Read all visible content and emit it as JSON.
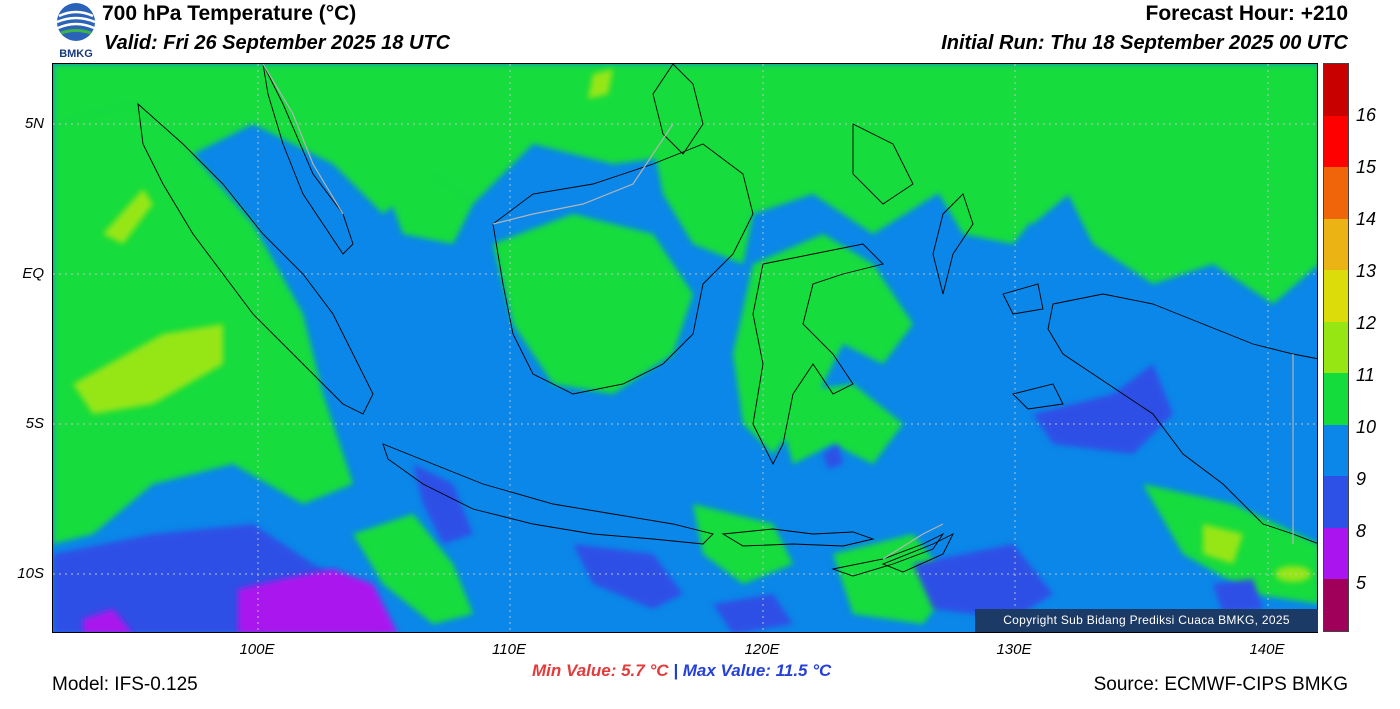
{
  "header": {
    "title": "700 hPa Temperature (°C)",
    "valid": "Valid: Fri 26 September 2025 18 UTC",
    "forecast_hour": "Forecast Hour: +210",
    "initial_run": "Initial Run: Thu 18 September 2025 00 UTC",
    "logo_text": "BMKG"
  },
  "map": {
    "lat_labels": [
      "5N",
      "EQ",
      "5S",
      "10S"
    ],
    "lon_labels": [
      "100E",
      "110E",
      "120E",
      "130E",
      "140E"
    ],
    "copyright": "Copyright Sub Bidang Prediksi Cuaca BMKG, 2025",
    "dominant_color": "#0a87e8",
    "grid": true
  },
  "legend": {
    "labels": [
      "16",
      "15",
      "14",
      "13",
      "12",
      "11",
      "10",
      "9",
      "8",
      "5"
    ],
    "colors": [
      "#c80000",
      "#ff0000",
      "#f0640a",
      "#ebb414",
      "#dcdc0a",
      "#96e614",
      "#14dc3c",
      "#0a87e8",
      "#2d50e6",
      "#aa14ee",
      "#a0005a"
    ]
  },
  "stats": {
    "min": "Min Value: 5.7 °C",
    "separator": "|",
    "max": "Max Value: 11.5 °C"
  },
  "footer": {
    "model": "Model: IFS-0.125",
    "source": "Source: ECMWF-CIPS BMKG"
  }
}
